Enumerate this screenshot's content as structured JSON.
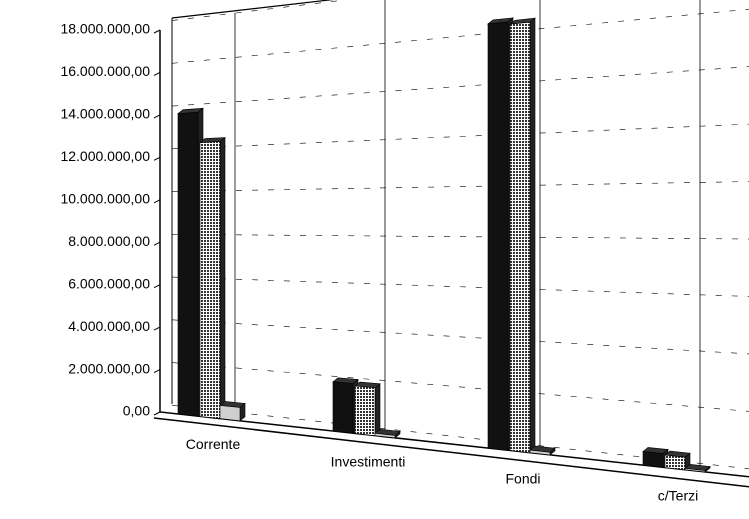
{
  "chart_data": {
    "type": "bar3d",
    "categories": [
      "Corrente",
      "Investimenti",
      "Fondi",
      "c/Terzi"
    ],
    "series": [
      {
        "color": "#111111",
        "values": [
          14000000,
          2100000,
          16700000,
          500000
        ]
      },
      {
        "color": "#8a8a8a",
        "values": [
          12600000,
          2000000,
          16600000,
          450000
        ]
      },
      {
        "color": "#cfcfcf",
        "values": [
          600000,
          100000,
          100000,
          50000
        ]
      }
    ],
    "ylim": [
      0,
      18000000
    ],
    "yticks": [
      {
        "value": 0,
        "label": "0,00"
      },
      {
        "value": 2000000,
        "label": "2.000.000,00"
      },
      {
        "value": 4000000,
        "label": "4.000.000,00"
      },
      {
        "value": 6000000,
        "label": "6.000.000,00"
      },
      {
        "value": 8000000,
        "label": "8.000.000,00"
      },
      {
        "value": 10000000,
        "label": "10.000.000,00"
      },
      {
        "value": 12000000,
        "label": "12.000.000,00"
      },
      {
        "value": 14000000,
        "label": "14.000.000,00"
      },
      {
        "value": 16000000,
        "label": "16.000.000,00"
      },
      {
        "value": 18000000,
        "label": "18.000.000,00"
      }
    ],
    "grid": true
  }
}
